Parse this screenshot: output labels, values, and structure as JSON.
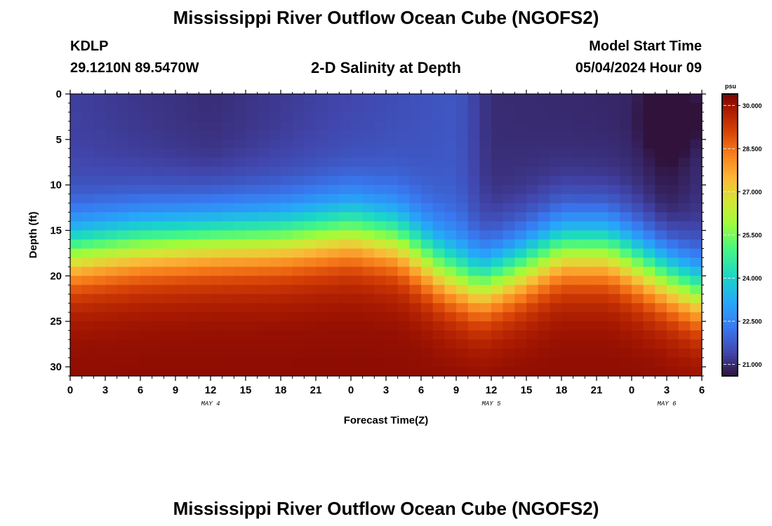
{
  "header": {
    "title": "Mississippi River Outflow Ocean Cube (NGOFS2)",
    "station": "KDLP",
    "coords": "29.1210N  89.5470W",
    "subtitle": "2-D Salinity at Depth",
    "start_label": "Model Start Time",
    "start_value": "05/04/2024 Hour 09"
  },
  "footer": {
    "title": "Mississippi River Outflow Ocean Cube (NGOFS2)"
  },
  "chart_data": {
    "type": "heatmap",
    "xlabel": "Forecast Time(Z)",
    "ylabel": "Depth (ft)",
    "colorbar_unit": "psu",
    "x_hours_range": [
      0,
      54
    ],
    "x_tick_labels": [
      "0",
      "3",
      "6",
      "9",
      "12",
      "15",
      "18",
      "21",
      "0",
      "3",
      "6",
      "9",
      "12",
      "15",
      "18",
      "21",
      "0",
      "3",
      "6"
    ],
    "day_labels": [
      {
        "text": "MAY 4",
        "hour": 12
      },
      {
        "text": "MAY 5",
        "hour": 36
      },
      {
        "text": "MAY 6",
        "hour": 51
      }
    ],
    "y_range": [
      0,
      31
    ],
    "y_ticks": [
      0,
      5,
      10,
      15,
      20,
      25,
      30
    ],
    "y_tick_labels": [
      "0",
      "5",
      "10",
      "15",
      "20",
      "25",
      "30"
    ],
    "colorbar": {
      "range": [
        20.6,
        30.4
      ],
      "ticks": [
        30.0,
        28.5,
        27.0,
        25.5,
        24.0,
        22.5,
        21.0
      ],
      "tick_labels": [
        "30.000",
        "28.500",
        "27.000",
        "25.500",
        "24.000",
        "22.500",
        "21.000"
      ]
    },
    "surface_salinity_profile": [
      {
        "hour": 0,
        "value": 21.3
      },
      {
        "hour": 12,
        "value": 21.0
      },
      {
        "hour": 24,
        "value": 21.4
      },
      {
        "hour": 33,
        "value": 21.7
      },
      {
        "hour": 36,
        "value": 21.0
      },
      {
        "hour": 48,
        "value": 20.9
      },
      {
        "hour": 51,
        "value": 20.6
      },
      {
        "hour": 54,
        "value": 21.0
      }
    ],
    "halocline_depth_ft": [
      {
        "hour": 0,
        "value": 17.5
      },
      {
        "hour": 6,
        "value": 16.5
      },
      {
        "hour": 12,
        "value": 16.0
      },
      {
        "hour": 18,
        "value": 15.8
      },
      {
        "hour": 24,
        "value": 15.0
      },
      {
        "hour": 28,
        "value": 16.0
      },
      {
        "hour": 32,
        "value": 19.5
      },
      {
        "hour": 35,
        "value": 21.0
      },
      {
        "hour": 38,
        "value": 19.5
      },
      {
        "hour": 42,
        "value": 17.0
      },
      {
        "hour": 46,
        "value": 17.0
      },
      {
        "hour": 50,
        "value": 19.5
      },
      {
        "hour": 54,
        "value": 22.0
      }
    ],
    "bottom_salinity_psu": 30.2
  }
}
